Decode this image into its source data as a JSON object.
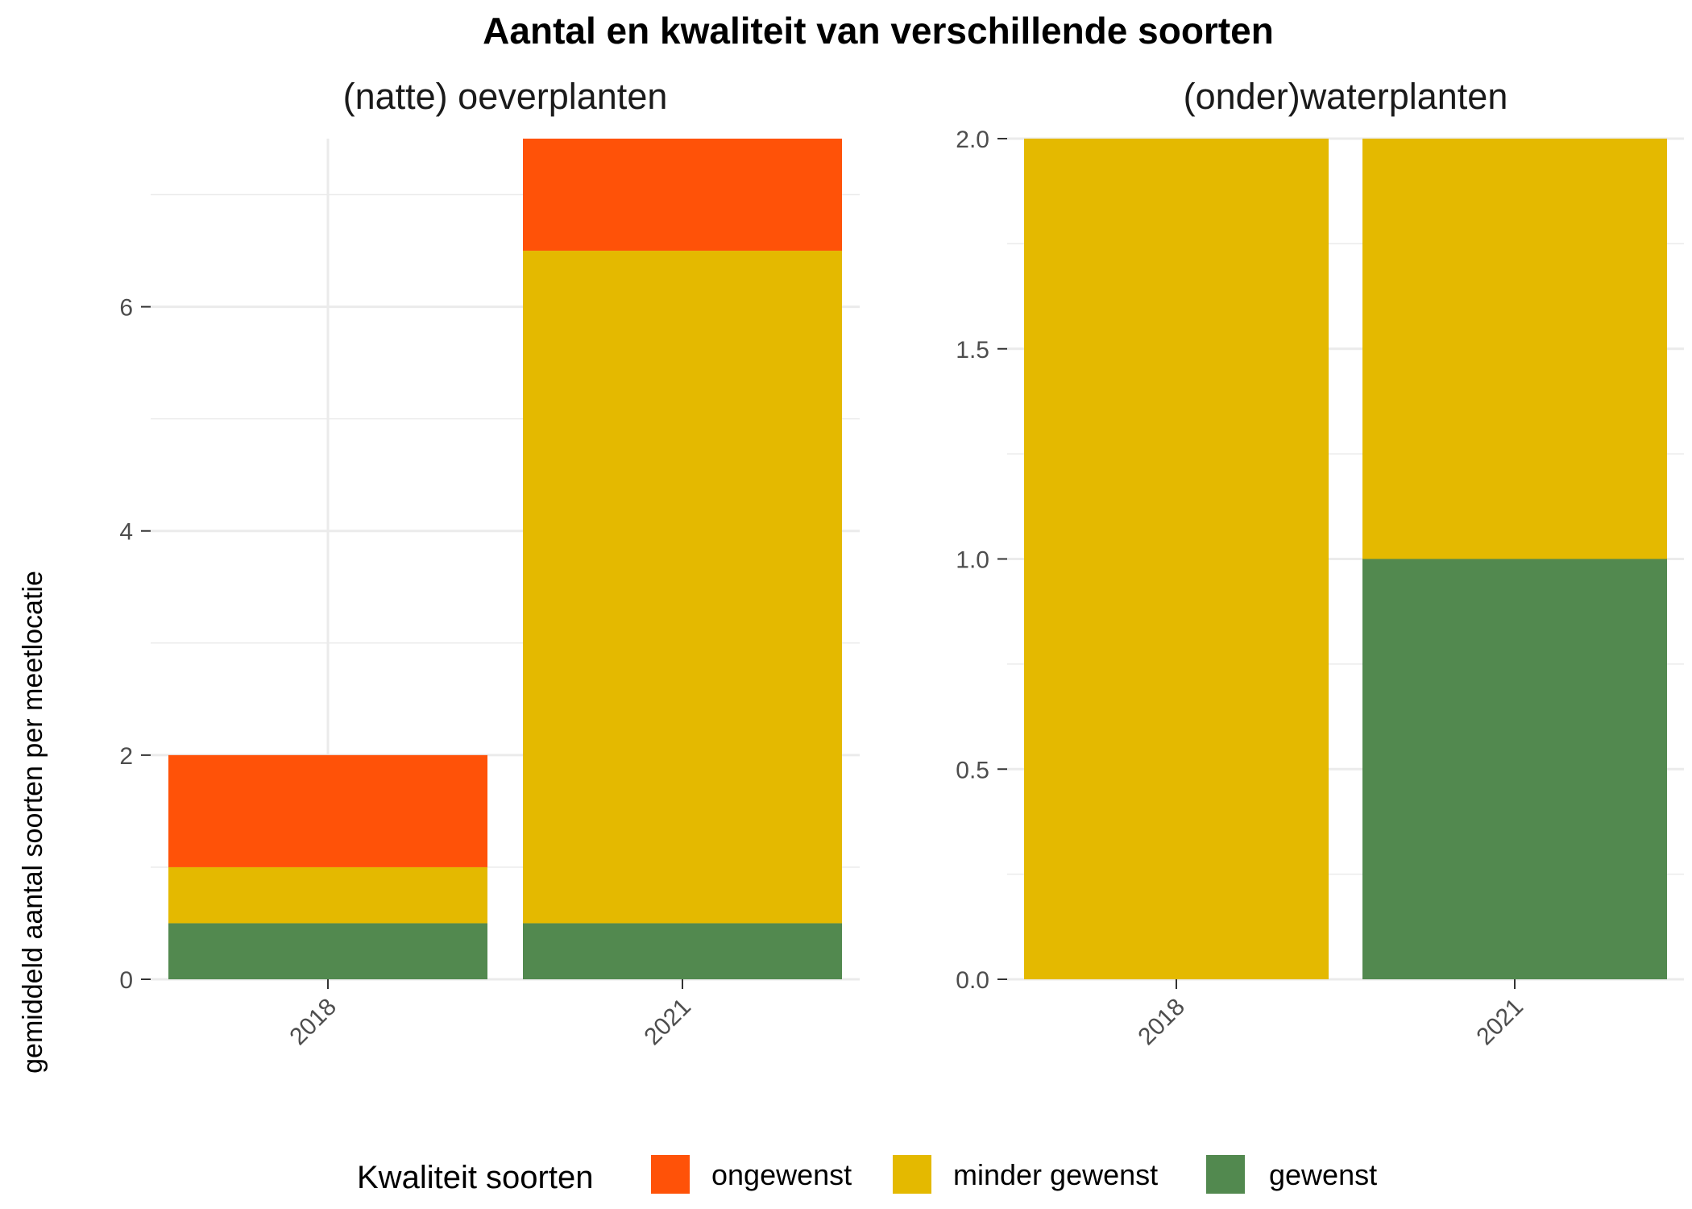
{
  "chart_data": {
    "type": "bar",
    "stacked": true,
    "title": "Aantal en kwaliteit van verschillende soorten",
    "ylabel": "gemiddeld aantal soorten per meetlocatie",
    "grid": true,
    "legend_position": "bottom",
    "legend": {
      "title": "Kwaliteit soorten",
      "items": [
        {
          "name": "ongewenst",
          "color": "#FF5208"
        },
        {
          "name": "minder gewenst",
          "color": "#E4B900"
        },
        {
          "name": "gewenst",
          "color": "#52894F"
        }
      ]
    },
    "panels": [
      {
        "title": "(natte) oeverplanten",
        "categories": [
          "2018",
          "2021"
        ],
        "ylim": [
          0,
          7.5
        ],
        "yticks": [
          0,
          2,
          4,
          6
        ],
        "ytick_labels": [
          "0",
          "2",
          "4",
          "6"
        ],
        "series": [
          {
            "name": "gewenst",
            "values": [
              0.5,
              0.5
            ]
          },
          {
            "name": "minder gewenst",
            "values": [
              0.5,
              6.0
            ]
          },
          {
            "name": "ongewenst",
            "values": [
              1.0,
              1.0
            ]
          }
        ]
      },
      {
        "title": "(onder)waterplanten",
        "categories": [
          "2018",
          "2021"
        ],
        "ylim": [
          0,
          2.0
        ],
        "yticks": [
          0,
          0.5,
          1.0,
          1.5,
          2.0
        ],
        "ytick_labels": [
          "0.0",
          "0.5",
          "1.0",
          "1.5",
          "2.0"
        ],
        "series": [
          {
            "name": "gewenst",
            "values": [
              0,
              1.0
            ]
          },
          {
            "name": "minder gewenst",
            "values": [
              2.0,
              1.0
            ]
          },
          {
            "name": "ongewenst",
            "values": [
              0,
              0
            ]
          }
        ]
      }
    ]
  }
}
